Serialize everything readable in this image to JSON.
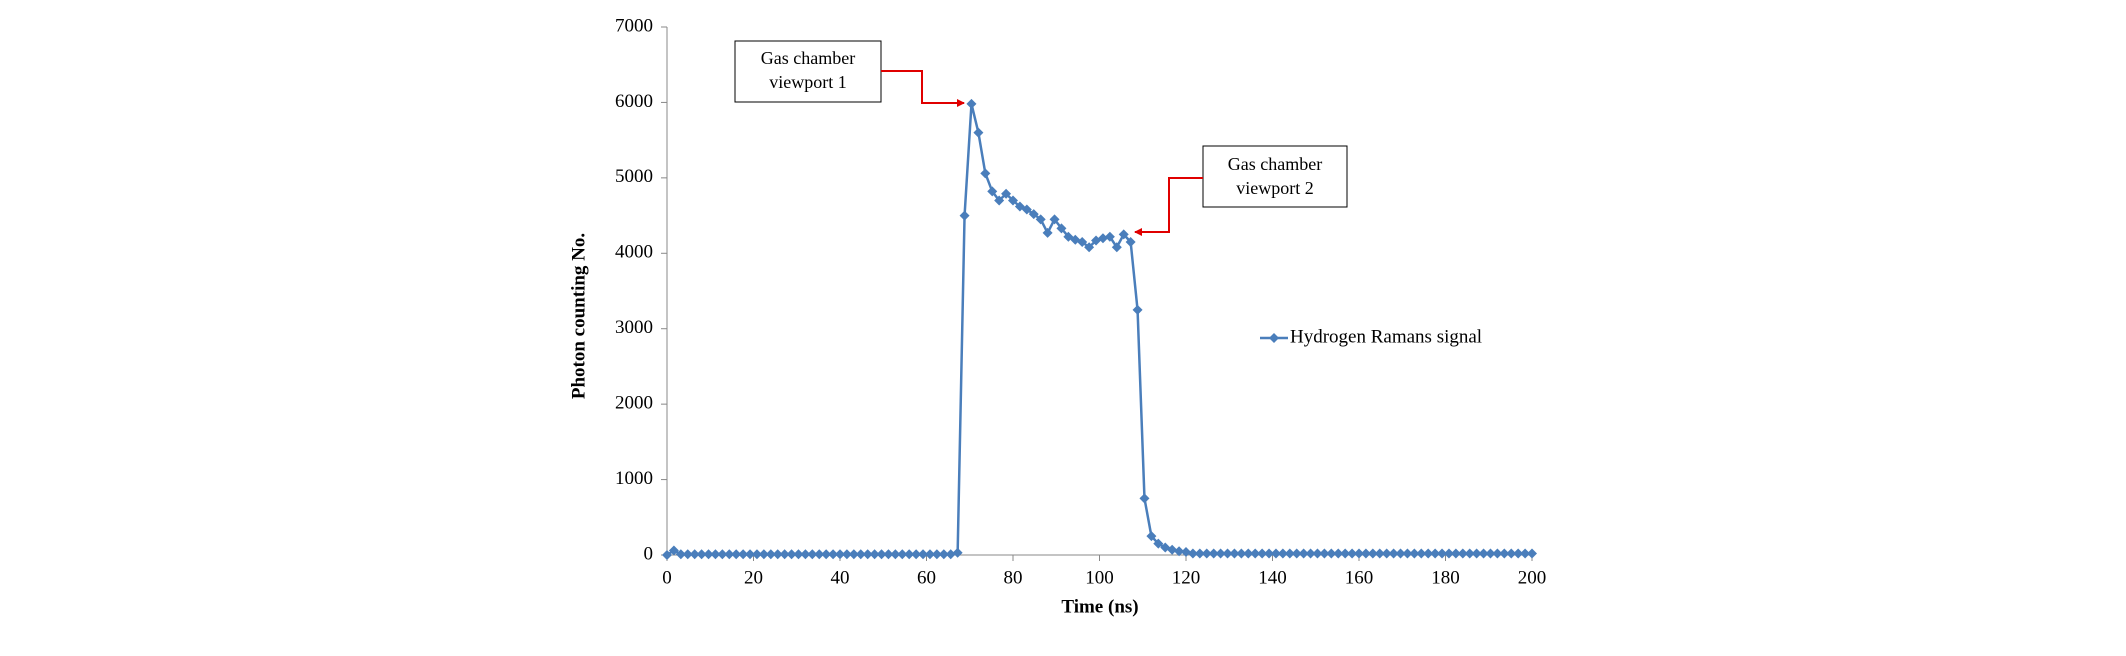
{
  "chart_data": {
    "type": "line",
    "x_label": "Time (ns)",
    "y_label": "Photon counting No.",
    "x": [
      0,
      1.6,
      3.2,
      4.8,
      6.4,
      8,
      9.6,
      11.2,
      12.8,
      14.4,
      16,
      17.6,
      19.2,
      20.8,
      22.4,
      24,
      25.6,
      27.2,
      28.8,
      30.4,
      32,
      33.6,
      35.2,
      36.8,
      38.4,
      40,
      41.6,
      43.2,
      44.8,
      46.4,
      48,
      49.6,
      51.2,
      52.8,
      54.4,
      56,
      57.6,
      59.2,
      60.8,
      62.4,
      64,
      65.6,
      67.2,
      68.8,
      70.4,
      72,
      73.6,
      75.2,
      76.8,
      78.4,
      80,
      81.6,
      83.2,
      84.8,
      86.4,
      88,
      89.6,
      91.2,
      92.8,
      94.4,
      96,
      97.6,
      99.2,
      100.8,
      102.4,
      104,
      105.6,
      107.2,
      108.8,
      110.4,
      112,
      113.6,
      115.2,
      116.8,
      118.4,
      120,
      121.6,
      123.2,
      124.8,
      126.4,
      128,
      129.6,
      131.2,
      132.8,
      134.4,
      136,
      137.6,
      139.2,
      140.8,
      142.4,
      144,
      145.6,
      147.2,
      148.8,
      150.4,
      152,
      153.6,
      155.2,
      156.8,
      158.4,
      160,
      161.6,
      163.2,
      164.8,
      166.4,
      168,
      169.6,
      171.2,
      172.8,
      174.4,
      176,
      177.6,
      179.2,
      180.8,
      182.4,
      184,
      185.6,
      187.2,
      188.8,
      190.4,
      192,
      193.6,
      195.2,
      196.8,
      198.4,
      200
    ],
    "series": [
      {
        "name": "Hydrogen Ramans signal",
        "color": "#4a7ebb",
        "values": [
          0,
          60,
          10,
          10,
          10,
          10,
          10,
          10,
          10,
          10,
          10,
          10,
          10,
          10,
          10,
          10,
          10,
          10,
          10,
          10,
          10,
          10,
          10,
          10,
          10,
          10,
          10,
          10,
          10,
          10,
          10,
          10,
          10,
          10,
          10,
          10,
          10,
          10,
          10,
          10,
          10,
          10,
          30,
          4500,
          5980,
          5600,
          5060,
          4820,
          4700,
          4790,
          4700,
          4620,
          4580,
          4520,
          4450,
          4270,
          4450,
          4330,
          4220,
          4180,
          4150,
          4080,
          4170,
          4200,
          4220,
          4080,
          4250,
          4150,
          3250,
          750,
          250,
          150,
          100,
          70,
          50,
          40,
          20,
          20,
          20,
          20,
          20,
          20,
          20,
          20,
          20,
          20,
          20,
          20,
          20,
          20,
          20,
          20,
          20,
          20,
          20,
          20,
          20,
          20,
          20,
          20,
          20,
          20,
          20,
          20,
          20,
          20,
          20,
          20,
          20,
          20,
          20,
          20,
          20,
          20,
          20,
          20,
          20,
          20,
          20,
          20,
          20,
          20,
          20,
          20,
          20,
          20
        ]
      }
    ],
    "xlim": [
      0,
      200
    ],
    "xticks": [
      0,
      20,
      40,
      60,
      80,
      100,
      120,
      140,
      160,
      180,
      200
    ],
    "ylim": [
      0,
      7000
    ],
    "yticks": [
      0,
      1000,
      2000,
      3000,
      4000,
      5000,
      6000,
      7000
    ],
    "grid": false,
    "legend": "right",
    "annotations": [
      {
        "lines": [
          "Gas chamber",
          "viewport 1"
        ]
      },
      {
        "lines": [
          "Gas chamber",
          "viewport 2"
        ]
      }
    ]
  }
}
